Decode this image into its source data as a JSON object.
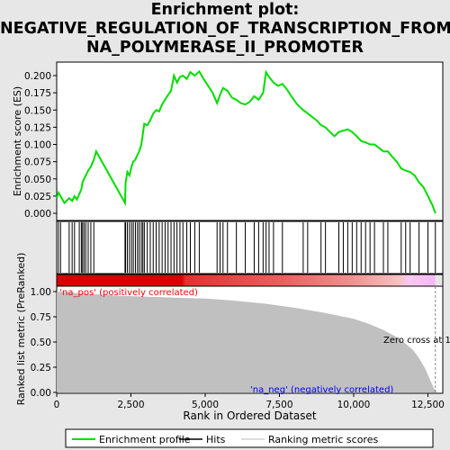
{
  "title_lines": [
    "Enrichment plot:",
    "NEGATIVE_REGULATION_OF_TRANSCRIPTION_FROM_R",
    "NA_POLYMERASE_II_PROMOTER"
  ],
  "colors": {
    "enrichment_line": "#00dd00",
    "hits": "#000000",
    "ranking_fill": "#c0c0c0",
    "pos_label": "#ff0000",
    "neg_label": "#0000ff",
    "bar_red": "#d60000",
    "bar_light": "#f8c8c8",
    "bar_neg": "#f0b0f0"
  },
  "chart_data": [
    {
      "type": "line",
      "name": "enrichment-profile",
      "ylabel": "Enrichment score (ES)",
      "xlim": [
        0,
        13000
      ],
      "ylim": [
        0,
        0.21
      ],
      "yticks": [
        "0.000",
        "0.025",
        "0.050",
        "0.075",
        "0.100",
        "0.125",
        "0.150",
        "0.175",
        "0.200"
      ],
      "ytick_values": [
        0,
        0.025,
        0.05,
        0.075,
        0.1,
        0.125,
        0.15,
        0.175,
        0.2
      ],
      "x": [
        0,
        60,
        130,
        260,
        420,
        520,
        600,
        680,
        760,
        830,
        870,
        920,
        980,
        1060,
        1150,
        1250,
        1330,
        2300,
        2320,
        2380,
        2450,
        2520,
        2580,
        2650,
        2720,
        2780,
        2850,
        2900,
        2950,
        3050,
        3150,
        3250,
        3350,
        3450,
        3550,
        3650,
        3750,
        3850,
        3950,
        4050,
        4150,
        4250,
        4380,
        4500,
        4650,
        4800,
        4950,
        5100,
        5250,
        5400,
        5500,
        5600,
        5750,
        5900,
        6050,
        6200,
        6350,
        6500,
        6650,
        6800,
        6950,
        7050,
        7150,
        7300,
        7450,
        7600,
        7750,
        7900,
        8100,
        8300,
        8450,
        8600,
        8750,
        8900,
        9050,
        9200,
        9350,
        9500,
        9650,
        9800,
        9950,
        10100,
        10250,
        10400,
        10550,
        10700,
        10850,
        11000,
        11150,
        11300,
        11450,
        11600,
        11750,
        11900,
        12050,
        12200,
        12350,
        12500,
        12650,
        12750
      ],
      "y": [
        0.022,
        0.03,
        0.025,
        0.015,
        0.022,
        0.018,
        0.025,
        0.02,
        0.028,
        0.035,
        0.045,
        0.05,
        0.055,
        0.062,
        0.068,
        0.078,
        0.09,
        0.015,
        0.045,
        0.06,
        0.055,
        0.068,
        0.075,
        0.078,
        0.085,
        0.09,
        0.1,
        0.115,
        0.13,
        0.128,
        0.135,
        0.145,
        0.15,
        0.148,
        0.158,
        0.165,
        0.172,
        0.178,
        0.2,
        0.19,
        0.198,
        0.2,
        0.195,
        0.205,
        0.2,
        0.206,
        0.195,
        0.185,
        0.175,
        0.16,
        0.172,
        0.182,
        0.178,
        0.168,
        0.165,
        0.16,
        0.158,
        0.162,
        0.17,
        0.165,
        0.175,
        0.205,
        0.198,
        0.19,
        0.185,
        0.188,
        0.18,
        0.17,
        0.158,
        0.15,
        0.145,
        0.14,
        0.135,
        0.128,
        0.125,
        0.118,
        0.112,
        0.118,
        0.12,
        0.122,
        0.118,
        0.112,
        0.105,
        0.103,
        0.1,
        0.1,
        0.095,
        0.09,
        0.09,
        0.082,
        0.075,
        0.065,
        0.062,
        0.06,
        0.055,
        0.045,
        0.038,
        0.025,
        0.012,
        0.0
      ]
    },
    {
      "type": "scatter",
      "name": "hits",
      "x": [
        60,
        130,
        420,
        520,
        600,
        760,
        830,
        870,
        920,
        980,
        1060,
        1150,
        1250,
        2300,
        2320,
        2380,
        2450,
        2520,
        2580,
        2650,
        2720,
        2780,
        2850,
        2900,
        2950,
        3050,
        3150,
        3250,
        3350,
        3450,
        3550,
        3650,
        3750,
        3850,
        3950,
        4050,
        4150,
        4250,
        4380,
        4500,
        4650,
        4800,
        5400,
        5500,
        5600,
        5750,
        6050,
        6350,
        6650,
        6800,
        6950,
        7050,
        7150,
        7300,
        7600,
        8300,
        8450,
        8900,
        9050,
        9500,
        9650,
        9800,
        9950,
        10100,
        10250,
        10400,
        10550,
        10700,
        11000,
        11150,
        11600,
        11750,
        11900,
        12200,
        12500,
        12750
      ]
    },
    {
      "type": "area",
      "name": "ranked-list-metric",
      "ylabel": "Ranked list metric (PreRanked)",
      "xlabel": "Rank in Ordered Dataset",
      "xlim": [
        0,
        13000
      ],
      "ylim": [
        0,
        1.05
      ],
      "xticks": [
        "0",
        "2,500",
        "5,000",
        "7,500",
        "10,000",
        "12,500"
      ],
      "xtick_values": [
        0,
        2500,
        5000,
        7500,
        10000,
        12500
      ],
      "yticks": [
        "0.00",
        "0.25",
        "0.50",
        "0.75",
        "1.00"
      ],
      "ytick_values": [
        0,
        0.25,
        0.5,
        0.75,
        1.0
      ],
      "x": [
        0,
        500,
        1000,
        2000,
        3000,
        4000,
        5000,
        6000,
        7000,
        8000,
        9000,
        10000,
        10500,
        11000,
        11500,
        11800,
        12000,
        12200,
        12400,
        12550,
        12700,
        12800
      ],
      "y": [
        1.0,
        0.99,
        0.98,
        0.96,
        0.95,
        0.94,
        0.93,
        0.91,
        0.88,
        0.84,
        0.79,
        0.73,
        0.68,
        0.62,
        0.54,
        0.47,
        0.42,
        0.34,
        0.24,
        0.14,
        0.04,
        0.0
      ],
      "annotations": [
        {
          "text": "'na_pos' (positively correlated)",
          "x": 100,
          "y": 1.0
        },
        {
          "text": "Zero cross at 1",
          "x": 11600,
          "y": 0.5
        },
        {
          "text": "'na_neg' (negatively correlated)",
          "x": 6700,
          "y": 0.02
        }
      ]
    }
  ],
  "legend": [
    {
      "label": "Enrichment profile",
      "style": "line-green"
    },
    {
      "label": "Hits",
      "style": "line-black"
    },
    {
      "label": "Ranking metric scores",
      "style": "line-gray"
    }
  ]
}
